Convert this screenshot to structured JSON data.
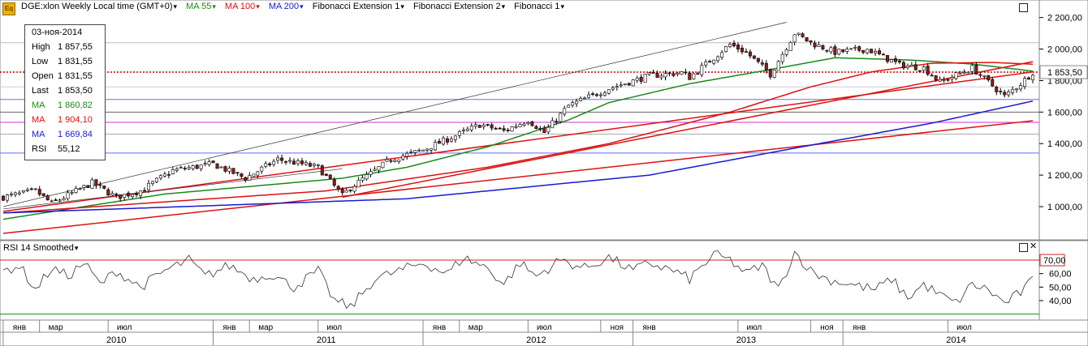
{
  "header": {
    "symbol": "DGE:xlon Weekly Local time (GMT+0)",
    "ma55": "MA 55",
    "ma100": "MA 100",
    "ma200": "MA 200",
    "fib_ext1": "Fibonacci Extension 1",
    "fib_ext2": "Fibonacci Extension 2",
    "fib1": "Fibonacci 1"
  },
  "info_box": {
    "date": "03-ноя-2014",
    "rows": [
      {
        "label": "High",
        "value": "1 857,55",
        "color": "#000000"
      },
      {
        "label": "Low",
        "value": "1 831,55",
        "color": "#000000"
      },
      {
        "label": "Open",
        "value": "1 831,55",
        "color": "#000000"
      },
      {
        "label": "Last",
        "value": "1 853,50",
        "color": "#000000"
      },
      {
        "label": "MA",
        "value": "1 860,82",
        "color": "#1a8a1a"
      },
      {
        "label": "MA",
        "value": "1 904,10",
        "color": "#dd1111"
      },
      {
        "label": "MA",
        "value": "1 669,84",
        "color": "#1a1ad0"
      },
      {
        "label": "RSI",
        "value": "55,12",
        "color": "#000000"
      }
    ]
  },
  "rsi_panel": {
    "title": "RSI 14 Smoothed"
  },
  "colors": {
    "ma55": "#1a8a1a",
    "ma100": "#dd1111",
    "ma200": "#1a1ad0",
    "fib": "#dd1111"
  },
  "chart_data": {
    "type": "candlestick",
    "price_axis": {
      "range": [
        820,
        2260
      ],
      "ticks": [
        1000,
        1200,
        1400,
        1600,
        1800,
        2000,
        2200
      ],
      "tick_labels": [
        "1 000,00",
        "1 200,00",
        "1 400,00",
        "1 600,00",
        "1 800,00",
        "2 000,00",
        "2 200,00"
      ],
      "last_price": 1853.5,
      "last_label": "1 853,50"
    },
    "rsi_axis": {
      "range": [
        28,
        82
      ],
      "ticks": [
        40,
        50,
        60
      ],
      "tick_labels": [
        "40,00",
        "50,00",
        "60,00"
      ],
      "overbought": 70,
      "overbought_label": "70,00",
      "oversold": 30
    },
    "time_axis": {
      "months": [
        "янв",
        "мар",
        "июл",
        "янв",
        "мар",
        "июл",
        "янв",
        "мар",
        "июл",
        "ноя",
        "янв",
        "июл",
        "ноя",
        "янв",
        "июл"
      ],
      "years": [
        "2010",
        "2011",
        "2012",
        "2013",
        "2014"
      ]
    },
    "weeks": 256,
    "close_anchors": [
      [
        0,
        1060
      ],
      [
        8,
        1100
      ],
      [
        12,
        1020
      ],
      [
        22,
        1150
      ],
      [
        28,
        1060
      ],
      [
        34,
        1100
      ],
      [
        42,
        1230
      ],
      [
        52,
        1270
      ],
      [
        60,
        1180
      ],
      [
        68,
        1300
      ],
      [
        78,
        1250
      ],
      [
        84,
        1070
      ],
      [
        86,
        1120
      ],
      [
        96,
        1300
      ],
      [
        104,
        1360
      ],
      [
        112,
        1450
      ],
      [
        118,
        1520
      ],
      [
        124,
        1480
      ],
      [
        130,
        1550
      ],
      [
        134,
        1470
      ],
      [
        140,
        1640
      ],
      [
        150,
        1750
      ],
      [
        160,
        1830
      ],
      [
        168,
        1850
      ],
      [
        170,
        1820
      ],
      [
        180,
        2030
      ],
      [
        184,
        1980
      ],
      [
        190,
        1840
      ],
      [
        196,
        2100
      ],
      [
        200,
        2040
      ],
      [
        206,
        1980
      ],
      [
        214,
        2000
      ],
      [
        222,
        1900
      ],
      [
        228,
        1880
      ],
      [
        232,
        1790
      ],
      [
        240,
        1880
      ],
      [
        248,
        1700
      ],
      [
        252,
        1780
      ],
      [
        255,
        1853
      ]
    ],
    "ma55_anchors": [
      [
        0,
        920
      ],
      [
        40,
        1080
      ],
      [
        84,
        1180
      ],
      [
        100,
        1250
      ],
      [
        120,
        1380
      ],
      [
        140,
        1550
      ],
      [
        150,
        1660
      ],
      [
        170,
        1780
      ],
      [
        190,
        1870
      ],
      [
        206,
        1945
      ],
      [
        225,
        1930
      ],
      [
        240,
        1905
      ],
      [
        255,
        1860
      ]
    ],
    "ma100_anchors": [
      [
        0,
        960
      ],
      [
        80,
        1100
      ],
      [
        120,
        1250
      ],
      [
        150,
        1400
      ],
      [
        180,
        1600
      ],
      [
        200,
        1760
      ],
      [
        215,
        1855
      ],
      [
        230,
        1910
      ],
      [
        245,
        1915
      ],
      [
        255,
        1904
      ]
    ],
    "ma200_anchors": [
      [
        0,
        960
      ],
      [
        100,
        1050
      ],
      [
        160,
        1200
      ],
      [
        200,
        1390
      ],
      [
        230,
        1530
      ],
      [
        255,
        1670
      ]
    ],
    "fib_levels": [
      {
        "value": 1853.5,
        "color": "#cc0000",
        "dashed": true
      },
      {
        "value": 1760,
        "color": "#ccccdd"
      },
      {
        "value": 1680,
        "color": "#6a6af0"
      },
      {
        "value": 1600,
        "color": "#666666"
      },
      {
        "value": 1535,
        "color": "#cc33cc"
      },
      {
        "value": 1460,
        "color": "#aaaaaa"
      },
      {
        "value": 1340,
        "color": "#6a6af0"
      },
      {
        "value": 2040,
        "color": "#bbbbbb"
      }
    ],
    "trend_lines": [
      {
        "from": [
          0,
          1000
        ],
        "to": [
          194,
          2170
        ],
        "color": "#333333"
      },
      {
        "from": [
          0,
          830
        ],
        "to": [
          255,
          1545
        ],
        "color": "#dd1111"
      },
      {
        "from": [
          0,
          970
        ],
        "to": [
          255,
          1855
        ],
        "color": "#dd1111"
      },
      {
        "from": [
          84,
          1060
        ],
        "to": [
          255,
          1920
        ],
        "color": "#dd1111"
      },
      {
        "from": [
          0,
          985
        ],
        "to": [
          84,
          1240
        ],
        "color": "#333333"
      }
    ],
    "rsi_anchors": [
      [
        0,
        62
      ],
      [
        4,
        66
      ],
      [
        8,
        48
      ],
      [
        12,
        64
      ],
      [
        16,
        58
      ],
      [
        20,
        68
      ],
      [
        24,
        52
      ],
      [
        28,
        62
      ],
      [
        34,
        50
      ],
      [
        40,
        62
      ],
      [
        46,
        70
      ],
      [
        50,
        58
      ],
      [
        56,
        66
      ],
      [
        62,
        56
      ],
      [
        66,
        60
      ],
      [
        72,
        50
      ],
      [
        78,
        62
      ],
      [
        82,
        40
      ],
      [
        86,
        35
      ],
      [
        92,
        56
      ],
      [
        98,
        62
      ],
      [
        104,
        68
      ],
      [
        110,
        60
      ],
      [
        114,
        72
      ],
      [
        120,
        64
      ],
      [
        124,
        52
      ],
      [
        128,
        68
      ],
      [
        132,
        58
      ],
      [
        138,
        70
      ],
      [
        144,
        64
      ],
      [
        150,
        72
      ],
      [
        156,
        62
      ],
      [
        160,
        68
      ],
      [
        166,
        62
      ],
      [
        170,
        56
      ],
      [
        176,
        74
      ],
      [
        180,
        70
      ],
      [
        184,
        60
      ],
      [
        188,
        66
      ],
      [
        192,
        48
      ],
      [
        196,
        76
      ],
      [
        200,
        62
      ],
      [
        204,
        56
      ],
      [
        210,
        52
      ],
      [
        216,
        48
      ],
      [
        220,
        56
      ],
      [
        224,
        42
      ],
      [
        228,
        52
      ],
      [
        232,
        44
      ],
      [
        236,
        38
      ],
      [
        240,
        52
      ],
      [
        244,
        48
      ],
      [
        248,
        38
      ],
      [
        252,
        46
      ],
      [
        255,
        55
      ]
    ]
  }
}
